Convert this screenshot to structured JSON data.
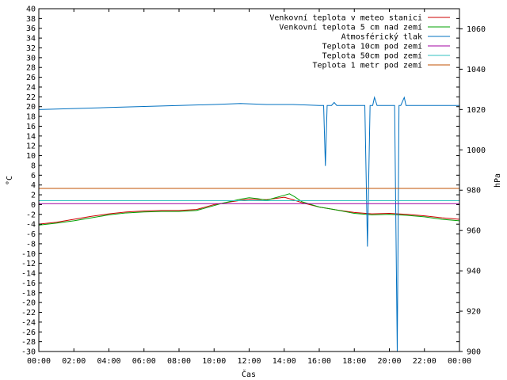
{
  "chart_data": {
    "type": "line",
    "xlabel": "Čas",
    "ylabel": "°C",
    "y2label": "hPa",
    "x_ticks": [
      "00:00",
      "02:00",
      "04:00",
      "06:00",
      "08:00",
      "10:00",
      "12:00",
      "14:00",
      "16:00",
      "18:00",
      "20:00",
      "22:00",
      "00:00"
    ],
    "xlim": [
      0,
      24
    ],
    "ylim": [
      -30,
      40
    ],
    "y2lim": [
      900,
      1070
    ],
    "y_ticks": [
      -30,
      -28,
      -26,
      -24,
      -22,
      -20,
      -18,
      -16,
      -14,
      -12,
      -10,
      -8,
      -6,
      -4,
      -2,
      0,
      2,
      4,
      6,
      8,
      10,
      12,
      14,
      16,
      18,
      20,
      22,
      24,
      26,
      28,
      30,
      32,
      34,
      36,
      38,
      40
    ],
    "y2_ticks": [
      900,
      920,
      940,
      960,
      980,
      1000,
      1020,
      1040,
      1060
    ],
    "legend_position": "top-right",
    "grid": false,
    "series": [
      {
        "name": "Venkovní teplota v meteo stanici",
        "color": "#cc0000",
        "axis": "y",
        "x": [
          0,
          1,
          2,
          3,
          4,
          5,
          6,
          7,
          8,
          9,
          10,
          11,
          12,
          13,
          14,
          14.5,
          15,
          16,
          17,
          18,
          19,
          20,
          21,
          22,
          23,
          24
        ],
        "y": [
          -4.0,
          -3.6,
          -3.0,
          -2.4,
          -1.9,
          -1.5,
          -1.3,
          -1.2,
          -1.2,
          -1.0,
          0.0,
          0.6,
          1.1,
          1.0,
          1.5,
          1.0,
          0.4,
          -0.5,
          -1.1,
          -1.6,
          -1.9,
          -1.8,
          -2.0,
          -2.3,
          -2.7,
          -3.0
        ]
      },
      {
        "name": "Venkovní teplota 5 cm nad zemí",
        "color": "#00a000",
        "axis": "y",
        "x": [
          0,
          1,
          2,
          3,
          4,
          5,
          6,
          7,
          8,
          9,
          10,
          10.5,
          11,
          11.5,
          12,
          12.5,
          13,
          13.5,
          14,
          14.3,
          14.6,
          15,
          16,
          17,
          18,
          19,
          20,
          21,
          22,
          23,
          24
        ],
        "y": [
          -4.2,
          -3.8,
          -3.3,
          -2.7,
          -2.1,
          -1.7,
          -1.5,
          -1.4,
          -1.4,
          -1.2,
          -0.2,
          0.3,
          0.7,
          1.1,
          1.4,
          1.2,
          0.9,
          1.4,
          1.9,
          2.2,
          1.6,
          0.6,
          -0.5,
          -1.1,
          -1.8,
          -2.1,
          -2.0,
          -2.2,
          -2.5,
          -3.0,
          -3.3
        ]
      },
      {
        "name": "Atmosférický tlak",
        "color": "#0070c0",
        "axis": "y2",
        "x": [
          0,
          2,
          4,
          6,
          8,
          10,
          11.5,
          13,
          14.5,
          16,
          16.25,
          16.35,
          16.45,
          16.7,
          16.85,
          17,
          18.6,
          18.75,
          18.9,
          19.05,
          19.15,
          19.3,
          20.3,
          20.45,
          20.55,
          20.65,
          20.85,
          20.95,
          21.1,
          22,
          24
        ],
        "y": [
          1020,
          1020.5,
          1021,
          1021.5,
          1022,
          1022.5,
          1023,
          1022.5,
          1022.5,
          1022,
          1022,
          992,
          1022,
          1022,
          1023.5,
          1022,
          1022,
          952,
          1022,
          1022,
          1026,
          1022,
          1022,
          900,
          1022,
          1022,
          1026,
          1022,
          1022,
          1022,
          1022
        ]
      },
      {
        "name": "Teplota 10cm pod zemí",
        "color": "#a000a0",
        "axis": "y",
        "x": [
          0,
          24
        ],
        "y": [
          0.2,
          0.2
        ]
      },
      {
        "name": "Teplota 50cm pod zemí",
        "color": "#30c0c0",
        "axis": "y",
        "x": [
          0,
          24
        ],
        "y": [
          0.8,
          0.8
        ]
      },
      {
        "name": "Teplota 1 metr pod zemí",
        "color": "#c05000",
        "axis": "y",
        "x": [
          0,
          24
        ],
        "y": [
          3.3,
          3.3
        ]
      }
    ]
  }
}
